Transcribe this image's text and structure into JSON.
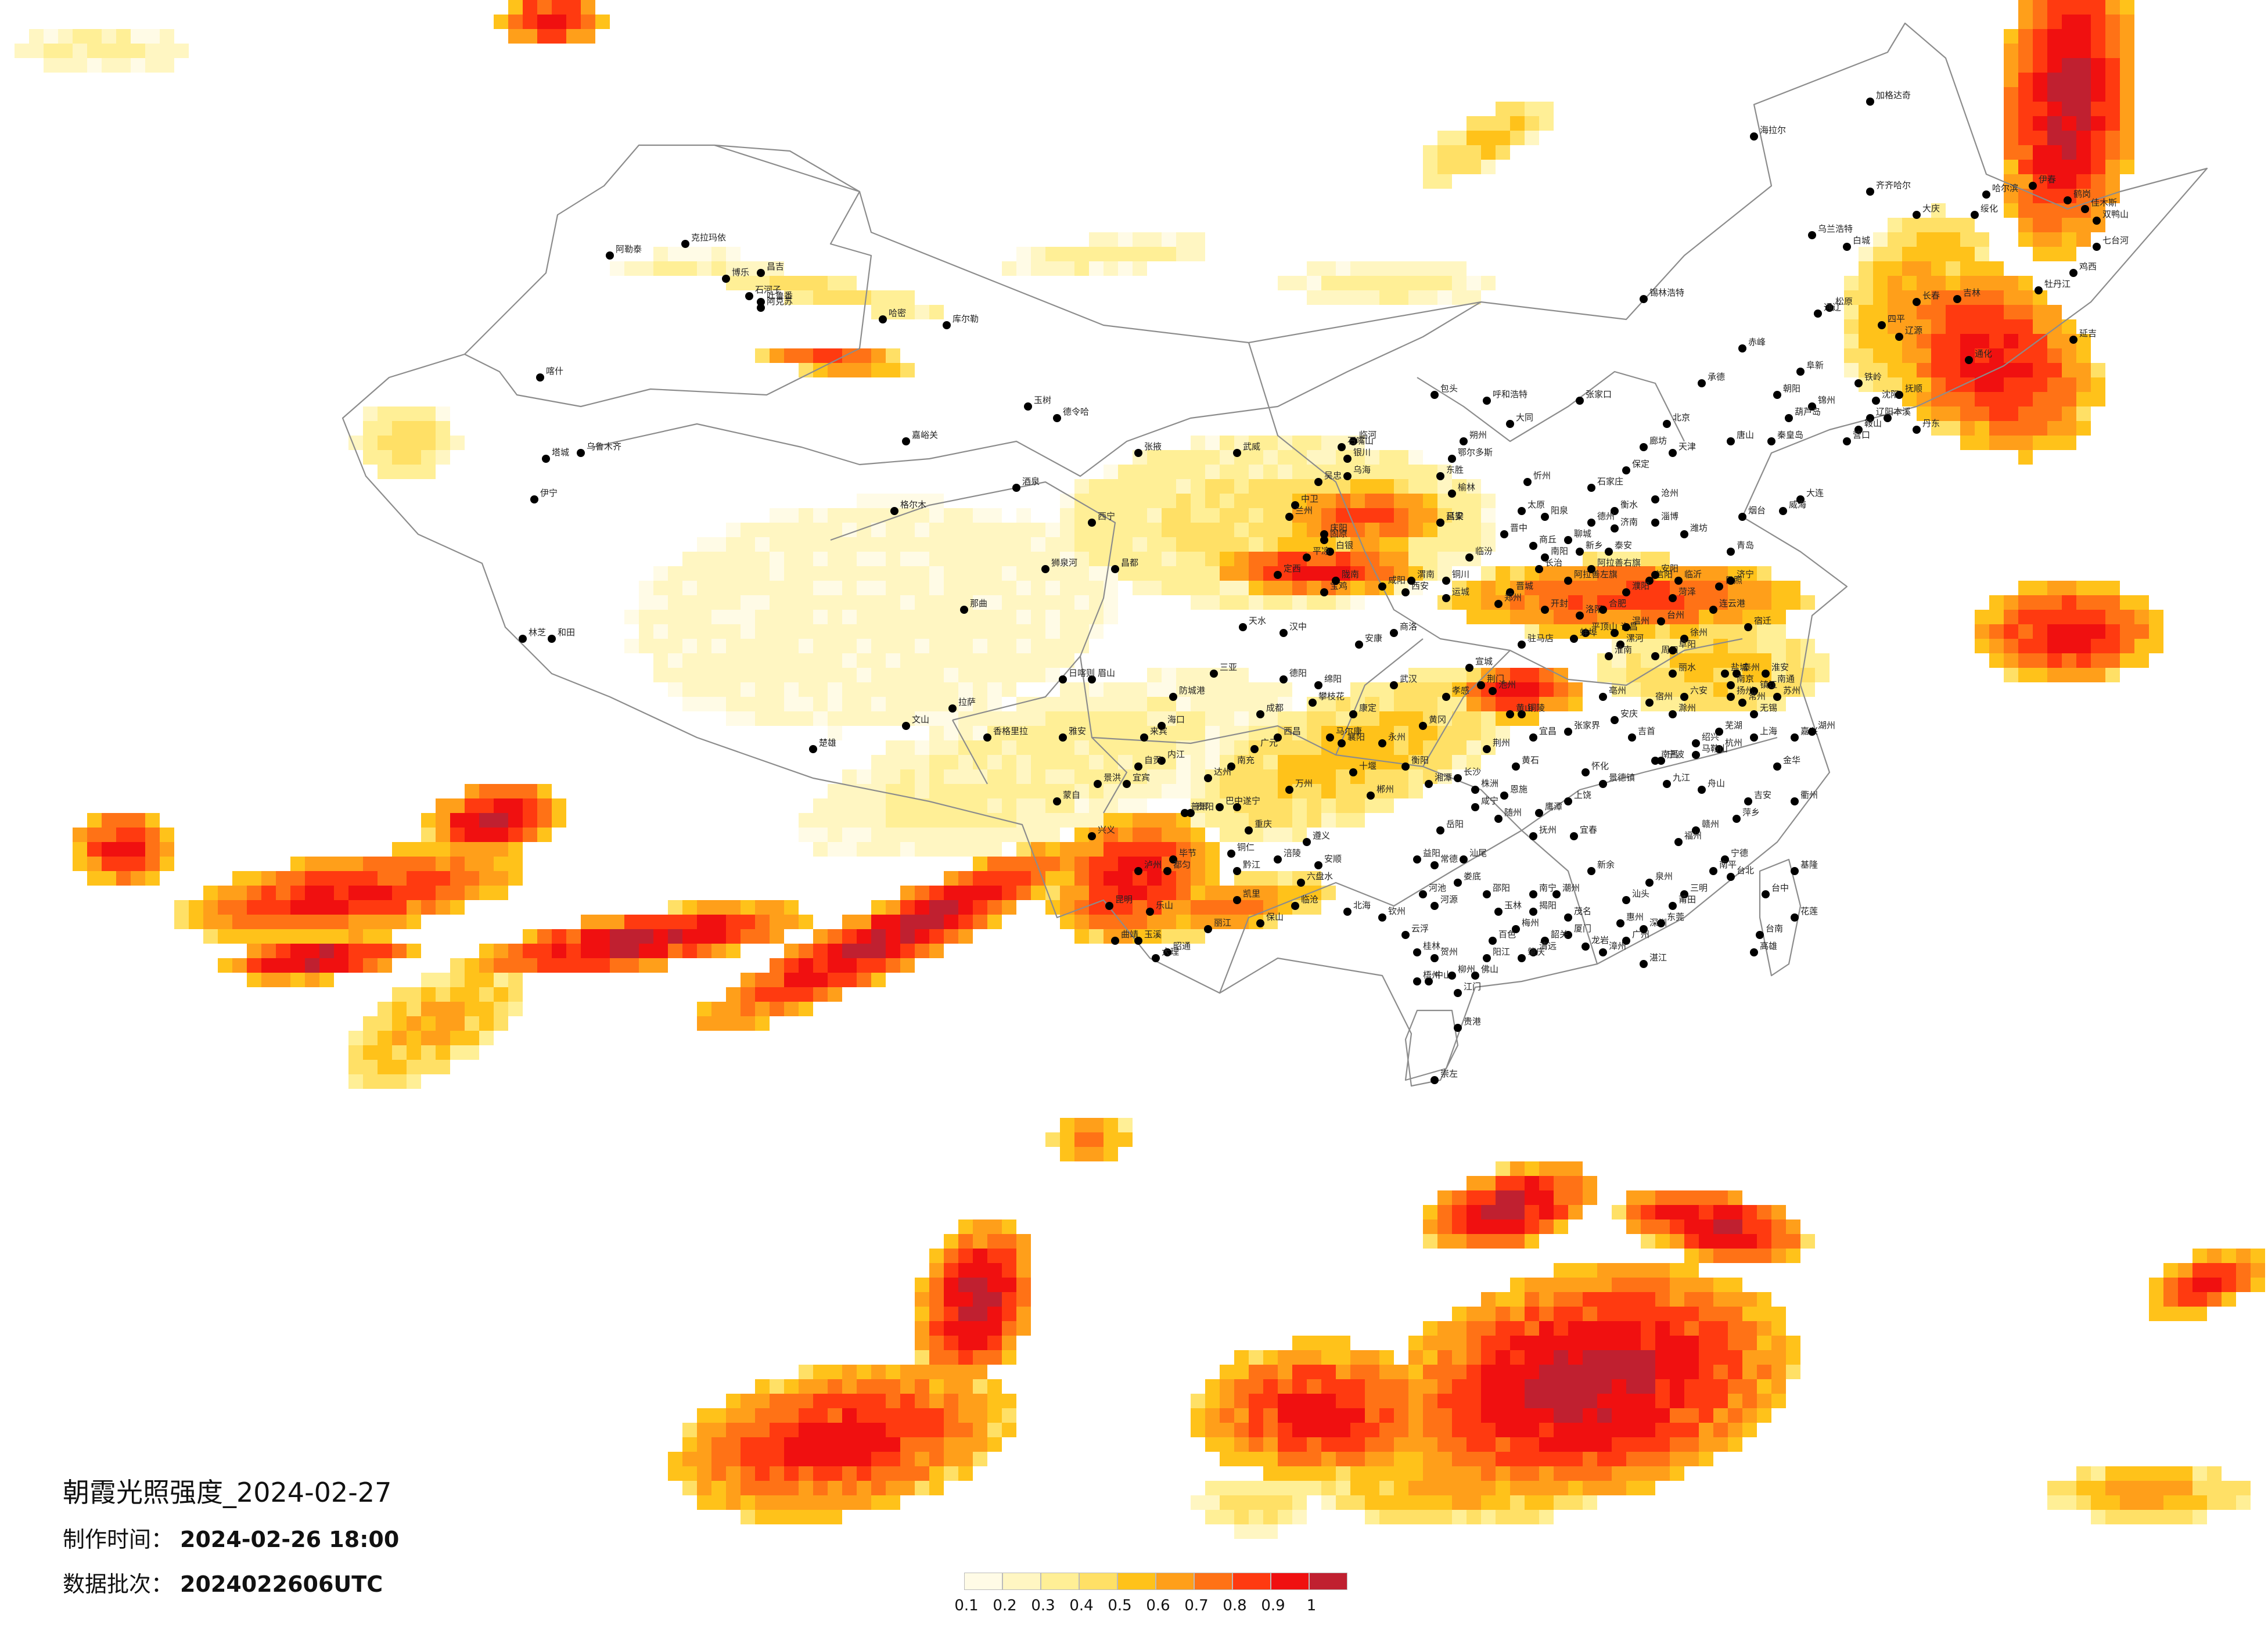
{
  "title": "朝霞光照强度_2024-02-27",
  "made_label": "制作时间：",
  "made_value": "2024-02-26 18:00",
  "batch_label": "数据批次：",
  "batch_value": "2024022606UTC",
  "legend": {
    "colors": [
      "#fffbe6",
      "#fff6c2",
      "#ffef96",
      "#ffe066",
      "#ffc21a",
      "#ff9f1a",
      "#ff7216",
      "#ff3a10",
      "#f01010",
      "#c02030"
    ],
    "labels": [
      "0.1",
      "0.2",
      "0.3",
      "0.4",
      "0.5",
      "0.6",
      "0.7",
      "0.8",
      "0.9",
      "1"
    ]
  },
  "cities": [
    {
      "name": "加格达奇"
    },
    {
      "name": "海拉尔"
    },
    {
      "name": "齐齐哈尔"
    },
    {
      "name": "大庆"
    },
    {
      "name": "乌兰浩特"
    },
    {
      "name": "白城"
    },
    {
      "name": "松原"
    },
    {
      "name": "通辽"
    },
    {
      "name": "锡林浩特"
    },
    {
      "name": "长春"
    },
    {
      "name": "吉林"
    },
    {
      "name": "四平"
    },
    {
      "name": "辽源"
    },
    {
      "name": "哈尔滨"
    },
    {
      "name": "绥化"
    },
    {
      "name": "伊春"
    },
    {
      "name": "鹤岗"
    },
    {
      "name": "佳木斯"
    },
    {
      "name": "双鸭山"
    },
    {
      "name": "七台河"
    },
    {
      "name": "鸡西"
    },
    {
      "name": "牡丹江"
    },
    {
      "name": "延吉"
    },
    {
      "name": "通化"
    },
    {
      "name": "赤峰"
    },
    {
      "name": "阜新"
    },
    {
      "name": "铁岭"
    },
    {
      "name": "沈阳"
    },
    {
      "name": "抚顺"
    },
    {
      "name": "本溪"
    },
    {
      "name": "丹东"
    },
    {
      "name": "辽阳"
    },
    {
      "name": "鞍山"
    },
    {
      "name": "营口"
    },
    {
      "name": "锦州"
    },
    {
      "name": "朝阳"
    },
    {
      "name": "葫芦岛"
    },
    {
      "name": "承德"
    },
    {
      "name": "秦皇岛"
    },
    {
      "name": "唐山"
    },
    {
      "name": "张家口"
    },
    {
      "name": "北京"
    },
    {
      "name": "天津"
    },
    {
      "name": "廊坊"
    },
    {
      "name": "保定"
    },
    {
      "name": "石家庄"
    },
    {
      "name": "衡水"
    },
    {
      "name": "沧州"
    },
    {
      "name": "大连"
    },
    {
      "name": "烟台"
    },
    {
      "name": "威海"
    },
    {
      "name": "青岛"
    },
    {
      "name": "潍坊"
    },
    {
      "name": "淄博"
    },
    {
      "name": "济南"
    },
    {
      "name": "泰安"
    },
    {
      "name": "临沂"
    },
    {
      "name": "日照"
    },
    {
      "name": "聊城"
    },
    {
      "name": "德州"
    },
    {
      "name": "呼和浩特"
    },
    {
      "name": "包头"
    },
    {
      "name": "鄂尔多斯"
    },
    {
      "name": "乌海"
    },
    {
      "name": "临河"
    },
    {
      "name": "东胜"
    },
    {
      "name": "大同"
    },
    {
      "name": "朔州"
    },
    {
      "name": "忻州"
    },
    {
      "name": "太原"
    },
    {
      "name": "阳泉"
    },
    {
      "name": "晋中"
    },
    {
      "name": "长治"
    },
    {
      "name": "晋城"
    },
    {
      "name": "临汾"
    },
    {
      "name": "运城"
    },
    {
      "name": "吕梁"
    },
    {
      "name": "榆林"
    },
    {
      "name": "延安"
    },
    {
      "name": "铜川"
    },
    {
      "name": "西安"
    },
    {
      "name": "宝鸡"
    },
    {
      "name": "咸阳"
    },
    {
      "name": "渭南"
    },
    {
      "name": "商洛"
    },
    {
      "name": "汉中"
    },
    {
      "name": "安康"
    },
    {
      "name": "银川"
    },
    {
      "name": "石嘴山"
    },
    {
      "name": "吴忠"
    },
    {
      "name": "中卫"
    },
    {
      "name": "固原"
    },
    {
      "name": "兰州"
    },
    {
      "name": "白银"
    },
    {
      "name": "天水"
    },
    {
      "name": "定西"
    },
    {
      "name": "平凉"
    },
    {
      "name": "庆阳"
    },
    {
      "name": "陇南"
    },
    {
      "name": "武威"
    },
    {
      "name": "张掖"
    },
    {
      "name": "酒泉"
    },
    {
      "name": "嘉峪关"
    },
    {
      "name": "西宁"
    },
    {
      "name": "格尔木"
    },
    {
      "name": "德令哈"
    },
    {
      "name": "玉树"
    },
    {
      "name": "阿拉善左旗"
    },
    {
      "name": "阿拉善右旗"
    },
    {
      "name": "郑州"
    },
    {
      "name": "开封"
    },
    {
      "name": "洛阳"
    },
    {
      "name": "平顶山"
    },
    {
      "name": "许昌"
    },
    {
      "name": "漯河"
    },
    {
      "name": "周口"
    },
    {
      "name": "驻马店"
    },
    {
      "name": "信阳"
    },
    {
      "name": "南阳"
    },
    {
      "name": "商丘"
    },
    {
      "name": "新乡"
    },
    {
      "name": "安阳"
    },
    {
      "name": "濮阳"
    },
    {
      "name": "菏泽"
    },
    {
      "name": "济宁"
    },
    {
      "name": "徐州"
    },
    {
      "name": "连云港"
    },
    {
      "name": "宿迁"
    },
    {
      "name": "淮安"
    },
    {
      "name": "盐城"
    },
    {
      "name": "扬州"
    },
    {
      "name": "泰州"
    },
    {
      "name": "南通"
    },
    {
      "name": "南京"
    },
    {
      "name": "镇江"
    },
    {
      "name": "常州"
    },
    {
      "name": "无锡"
    },
    {
      "name": "苏州"
    },
    {
      "name": "上海"
    },
    {
      "name": "嘉兴"
    },
    {
      "name": "湖州"
    },
    {
      "name": "杭州"
    },
    {
      "name": "绍兴"
    },
    {
      "name": "宁波"
    },
    {
      "name": "舟山"
    },
    {
      "name": "金华"
    },
    {
      "name": "衢州"
    },
    {
      "name": "丽水"
    },
    {
      "name": "台州"
    },
    {
      "name": "温州"
    },
    {
      "name": "合肥"
    },
    {
      "name": "蚌埠"
    },
    {
      "name": "淮南"
    },
    {
      "name": "阜阳"
    },
    {
      "name": "亳州"
    },
    {
      "name": "宿州"
    },
    {
      "name": "滁州"
    },
    {
      "name": "六安"
    },
    {
      "name": "安庆"
    },
    {
      "name": "芜湖"
    },
    {
      "name": "马鞍山"
    },
    {
      "name": "铜陵"
    },
    {
      "name": "池州"
    },
    {
      "name": "黄山"
    },
    {
      "name": "宣城"
    },
    {
      "name": "武汉"
    },
    {
      "name": "孝感"
    },
    {
      "name": "黄冈"
    },
    {
      "name": "襄阳"
    },
    {
      "name": "十堰"
    },
    {
      "name": "荆门"
    },
    {
      "name": "荆州"
    },
    {
      "name": "宜昌"
    },
    {
      "name": "恩施"
    },
    {
      "name": "随州"
    },
    {
      "name": "咸宁"
    },
    {
      "name": "黄石"
    },
    {
      "name": "长沙"
    },
    {
      "name": "株洲"
    },
    {
      "name": "湘潭"
    },
    {
      "name": "岳阳"
    },
    {
      "name": "常德"
    },
    {
      "name": "益阳"
    },
    {
      "name": "娄底"
    },
    {
      "name": "邵阳"
    },
    {
      "name": "衡阳"
    },
    {
      "name": "永州"
    },
    {
      "name": "郴州"
    },
    {
      "name": "怀化"
    },
    {
      "name": "张家界"
    },
    {
      "name": "吉首"
    },
    {
      "name": "南昌"
    },
    {
      "name": "九江"
    },
    {
      "name": "景德镇"
    },
    {
      "name": "上饶"
    },
    {
      "name": "鹰潭"
    },
    {
      "name": "抚州"
    },
    {
      "name": "宜春"
    },
    {
      "name": "新余"
    },
    {
      "name": "萍乡"
    },
    {
      "name": "吉安"
    },
    {
      "name": "赣州"
    },
    {
      "name": "福州"
    },
    {
      "name": "宁德"
    },
    {
      "name": "南平"
    },
    {
      "name": "三明"
    },
    {
      "name": "莆田"
    },
    {
      "name": "泉州"
    },
    {
      "name": "厦门"
    },
    {
      "name": "漳州"
    },
    {
      "name": "龙岩"
    },
    {
      "name": "广州"
    },
    {
      "name": "深圳"
    },
    {
      "name": "东莞"
    },
    {
      "name": "惠州"
    },
    {
      "name": "汕头"
    },
    {
      "name": "潮州"
    },
    {
      "name": "揭阳"
    },
    {
      "name": "梅州"
    },
    {
      "name": "韶关"
    },
    {
      "name": "清远"
    },
    {
      "name": "肇庆"
    },
    {
      "name": "佛山"
    },
    {
      "name": "中山"
    },
    {
      "name": "江门"
    },
    {
      "name": "阳江"
    },
    {
      "name": "茂名"
    },
    {
      "name": "湛江"
    },
    {
      "name": "云浮"
    },
    {
      "name": "河源"
    },
    {
      "name": "汕尾"
    },
    {
      "name": "南宁"
    },
    {
      "name": "柳州"
    },
    {
      "name": "桂林"
    },
    {
      "name": "梧州"
    },
    {
      "name": "北海"
    },
    {
      "name": "钦州"
    },
    {
      "name": "玉林"
    },
    {
      "name": "百色"
    },
    {
      "name": "河池"
    },
    {
      "name": "贺州"
    },
    {
      "name": "贵港"
    },
    {
      "name": "崇左"
    },
    {
      "name": "来宾"
    },
    {
      "name": "防城港"
    },
    {
      "name": "海口"
    },
    {
      "name": "三亚"
    },
    {
      "name": "成都"
    },
    {
      "name": "绵阳"
    },
    {
      "name": "德阳"
    },
    {
      "name": "广元"
    },
    {
      "name": "南充"
    },
    {
      "name": "达州"
    },
    {
      "name": "巴中"
    },
    {
      "name": "遂宁"
    },
    {
      "name": "内江"
    },
    {
      "name": "自贡"
    },
    {
      "name": "宜宾"
    },
    {
      "name": "泸州"
    },
    {
      "name": "乐山"
    },
    {
      "name": "眉山"
    },
    {
      "name": "雅安"
    },
    {
      "name": "西昌"
    },
    {
      "name": "攀枝花"
    },
    {
      "name": "马尔康"
    },
    {
      "name": "康定"
    },
    {
      "name": "重庆"
    },
    {
      "name": "万州"
    },
    {
      "name": "涪陵"
    },
    {
      "name": "黔江"
    },
    {
      "name": "贵阳"
    },
    {
      "name": "遵义"
    },
    {
      "name": "安顺"
    },
    {
      "name": "六盘水"
    },
    {
      "name": "毕节"
    },
    {
      "name": "铜仁"
    },
    {
      "name": "凯里"
    },
    {
      "name": "都匀"
    },
    {
      "name": "兴义"
    },
    {
      "name": "昆明"
    },
    {
      "name": "曲靖"
    },
    {
      "name": "玉溪"
    },
    {
      "name": "昭通"
    },
    {
      "name": "大理"
    },
    {
      "name": "丽江"
    },
    {
      "name": "保山"
    },
    {
      "name": "临沧"
    },
    {
      "name": "普洱"
    },
    {
      "name": "景洪"
    },
    {
      "name": "蒙自"
    },
    {
      "name": "文山"
    },
    {
      "name": "楚雄"
    },
    {
      "name": "香格里拉"
    },
    {
      "name": "拉萨"
    },
    {
      "name": "日喀则"
    },
    {
      "name": "林芝"
    },
    {
      "name": "那曲"
    },
    {
      "name": "昌都"
    },
    {
      "name": "狮泉河"
    },
    {
      "name": "乌鲁木齐"
    },
    {
      "name": "克拉玛依"
    },
    {
      "name": "吐鲁番"
    },
    {
      "name": "哈密"
    },
    {
      "name": "库尔勒"
    },
    {
      "name": "阿克苏"
    },
    {
      "name": "喀什"
    },
    {
      "name": "和田"
    },
    {
      "name": "伊宁"
    },
    {
      "name": "塔城"
    },
    {
      "name": "阿勒泰"
    },
    {
      "name": "博乐"
    },
    {
      "name": "昌吉"
    },
    {
      "name": "石河子"
    },
    {
      "name": "台北"
    },
    {
      "name": "台中"
    },
    {
      "name": "台南"
    },
    {
      "name": "高雄"
    },
    {
      "name": "基隆"
    },
    {
      "name": "花莲"
    }
  ]
}
